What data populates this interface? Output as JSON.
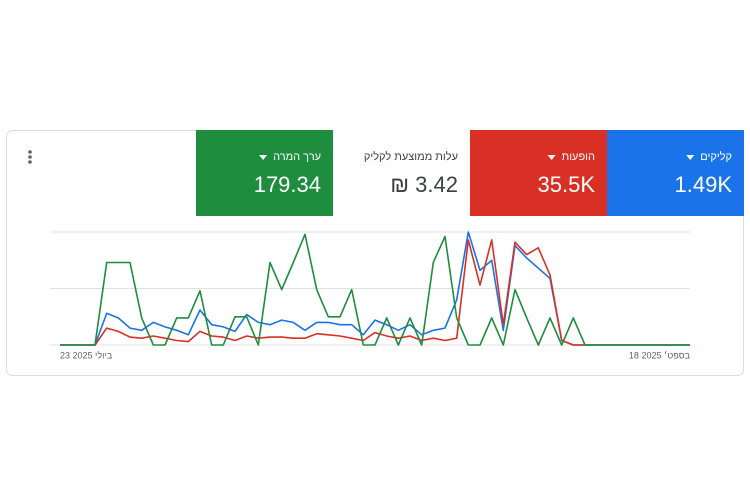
{
  "metrics": [
    {
      "label": "קליקים",
      "value": "1.49K",
      "color": "#1a73e8"
    },
    {
      "label": "הופעות",
      "value": "35.5K",
      "color": "#d93025"
    },
    {
      "label": "עלות ממוצעת לקליק",
      "value": "₪ 3.42",
      "color": "#ffffff"
    },
    {
      "label": "ערך המרה",
      "value": "179.34",
      "color": "#1e8e3e"
    }
  ],
  "chart_data": {
    "type": "line",
    "categories": [
      "23 ביולי 2025",
      null,
      null,
      null,
      null,
      null,
      null,
      null,
      null,
      null,
      null,
      null,
      null,
      null,
      null,
      null,
      null,
      null,
      null,
      null,
      null,
      null,
      null,
      null,
      null,
      null,
      null,
      null,
      null,
      null,
      null,
      null,
      null,
      null,
      null,
      null,
      null,
      null,
      null,
      null,
      null,
      null,
      null,
      null,
      null,
      null,
      null,
      null,
      null,
      null,
      null,
      null,
      null,
      null,
      "18 בספט׳ 2025"
    ],
    "ylim": [
      0,
      100
    ],
    "yticks": [
      0,
      50,
      100
    ],
    "grid": true,
    "series": [
      {
        "color": "#1a73e8",
        "values": [
          0,
          0,
          0,
          0,
          28,
          24,
          15,
          13,
          20,
          16,
          13,
          9,
          31,
          18,
          16,
          12,
          27,
          20,
          18,
          22,
          20,
          13,
          20,
          20,
          18,
          18,
          9,
          22,
          18,
          13,
          18,
          9,
          13,
          15,
          40,
          100,
          66,
          75,
          13,
          88,
          77,
          68,
          59,
          4,
          0,
          0,
          0,
          0,
          0,
          0,
          0,
          0,
          0,
          0,
          0
        ]
      },
      {
        "color": "#d93025",
        "values": [
          0,
          0,
          0,
          0,
          15,
          12,
          7,
          6,
          8,
          6,
          4,
          3,
          12,
          8,
          7,
          4,
          8,
          6,
          7,
          7,
          6,
          6,
          10,
          9,
          8,
          6,
          4,
          11,
          8,
          6,
          8,
          4,
          6,
          4,
          6,
          93,
          53,
          93,
          18,
          91,
          80,
          86,
          62,
          4,
          0,
          0,
          0,
          0,
          0,
          0,
          0,
          0,
          0,
          0,
          0
        ]
      },
      {
        "color": "#1e8e3e",
        "values": [
          0,
          0,
          0,
          0,
          73,
          73,
          73,
          24,
          0,
          0,
          24,
          24,
          48,
          0,
          0,
          25,
          25,
          0,
          73,
          49,
          73,
          98,
          49,
          25,
          25,
          49,
          0,
          0,
          24,
          0,
          24,
          0,
          73,
          96,
          24,
          0,
          0,
          24,
          0,
          49,
          24,
          0,
          24,
          0,
          24,
          0,
          0,
          0,
          0,
          0,
          0,
          0,
          0,
          0,
          0
        ]
      }
    ]
  }
}
